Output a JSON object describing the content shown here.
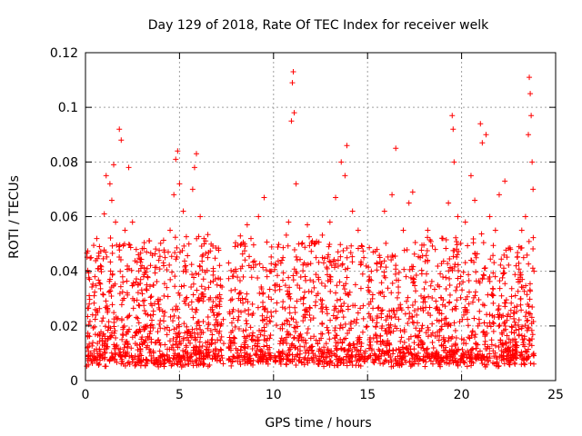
{
  "chart_data": {
    "type": "scatter",
    "title": "Day 129 of 2018, Rate Of TEC Index for receiver welk",
    "xlabel": "GPS time / hours",
    "ylabel": "ROTI / TECUs",
    "xlim": [
      0,
      25
    ],
    "ylim": [
      0,
      0.12
    ],
    "x_ticks": [
      0,
      5,
      10,
      15,
      20,
      25
    ],
    "x_tick_labels": [
      "0",
      "5",
      "10",
      "15",
      "20",
      "25"
    ],
    "y_ticks": [
      0,
      0.02,
      0.04,
      0.06,
      0.08,
      0.1,
      0.12
    ],
    "y_tick_labels": [
      "0",
      "0.02",
      "0.04",
      "0.06",
      "0.08",
      "0.1",
      "0.12"
    ],
    "grid": true,
    "marker": "+",
    "color": "#ff0000",
    "series": [
      {
        "name": "ROTI",
        "points": [
          [
            0.1,
            0.012
          ],
          [
            0.2,
            0.028
          ],
          [
            0.3,
            0.045
          ],
          [
            0.5,
            0.038
          ],
          [
            0.6,
            0.052
          ],
          [
            0.8,
            0.042
          ],
          [
            1.0,
            0.061
          ],
          [
            1.1,
            0.075
          ],
          [
            1.3,
            0.072
          ],
          [
            1.4,
            0.066
          ],
          [
            1.5,
            0.079
          ],
          [
            1.6,
            0.058
          ],
          [
            1.8,
            0.092
          ],
          [
            1.9,
            0.088
          ],
          [
            2.1,
            0.055
          ],
          [
            2.3,
            0.078
          ],
          [
            2.5,
            0.058
          ],
          [
            2.7,
            0.048
          ],
          [
            3.0,
            0.042
          ],
          [
            3.3,
            0.038
          ],
          [
            3.6,
            0.035
          ],
          [
            3.9,
            0.044
          ],
          [
            4.2,
            0.047
          ],
          [
            4.5,
            0.055
          ],
          [
            4.7,
            0.068
          ],
          [
            4.8,
            0.081
          ],
          [
            4.9,
            0.084
          ],
          [
            5.0,
            0.072
          ],
          [
            5.2,
            0.062
          ],
          [
            5.5,
            0.05
          ],
          [
            5.7,
            0.07
          ],
          [
            5.8,
            0.078
          ],
          [
            5.9,
            0.083
          ],
          [
            6.1,
            0.06
          ],
          [
            6.3,
            0.052
          ],
          [
            6.5,
            0.045
          ],
          [
            6.8,
            0.04
          ],
          [
            7.0,
            0.035
          ],
          [
            7.2,
            0.03
          ],
          [
            8.0,
            0.04
          ],
          [
            8.3,
            0.05
          ],
          [
            8.6,
            0.057
          ],
          [
            8.8,
            0.052
          ],
          [
            9.2,
            0.06
          ],
          [
            9.5,
            0.067
          ],
          [
            9.8,
            0.04
          ],
          [
            10.2,
            0.035
          ],
          [
            10.5,
            0.045
          ],
          [
            10.8,
            0.058
          ],
          [
            10.95,
            0.095
          ],
          [
            11.0,
            0.109
          ],
          [
            11.05,
            0.113
          ],
          [
            11.1,
            0.098
          ],
          [
            11.2,
            0.072
          ],
          [
            11.5,
            0.05
          ],
          [
            11.8,
            0.057
          ],
          [
            12.2,
            0.05
          ],
          [
            12.6,
            0.045
          ],
          [
            13.0,
            0.058
          ],
          [
            13.3,
            0.067
          ],
          [
            13.6,
            0.08
          ],
          [
            13.8,
            0.075
          ],
          [
            13.9,
            0.086
          ],
          [
            14.2,
            0.062
          ],
          [
            14.5,
            0.055
          ],
          [
            14.8,
            0.045
          ],
          [
            15.2,
            0.04
          ],
          [
            15.5,
            0.048
          ],
          [
            15.9,
            0.062
          ],
          [
            16.3,
            0.068
          ],
          [
            16.5,
            0.085
          ],
          [
            16.9,
            0.055
          ],
          [
            17.2,
            0.065
          ],
          [
            17.4,
            0.069
          ],
          [
            17.8,
            0.045
          ],
          [
            18.2,
            0.055
          ],
          [
            18.6,
            0.048
          ],
          [
            19.0,
            0.052
          ],
          [
            19.3,
            0.065
          ],
          [
            19.5,
            0.097
          ],
          [
            19.55,
            0.092
          ],
          [
            19.6,
            0.08
          ],
          [
            19.8,
            0.06
          ],
          [
            20.2,
            0.058
          ],
          [
            20.5,
            0.075
          ],
          [
            20.7,
            0.066
          ],
          [
            21.0,
            0.094
          ],
          [
            21.1,
            0.087
          ],
          [
            21.3,
            0.09
          ],
          [
            21.5,
            0.06
          ],
          [
            21.8,
            0.055
          ],
          [
            22.0,
            0.068
          ],
          [
            22.3,
            0.073
          ],
          [
            22.6,
            0.048
          ],
          [
            22.9,
            0.042
          ],
          [
            23.2,
            0.055
          ],
          [
            23.4,
            0.06
          ],
          [
            23.55,
            0.09
          ],
          [
            23.6,
            0.111
          ],
          [
            23.65,
            0.105
          ],
          [
            23.7,
            0.097
          ],
          [
            23.75,
            0.08
          ],
          [
            23.8,
            0.07
          ],
          [
            23.85,
            0.04
          ]
        ]
      }
    ],
    "density_note_omitted": false
  }
}
